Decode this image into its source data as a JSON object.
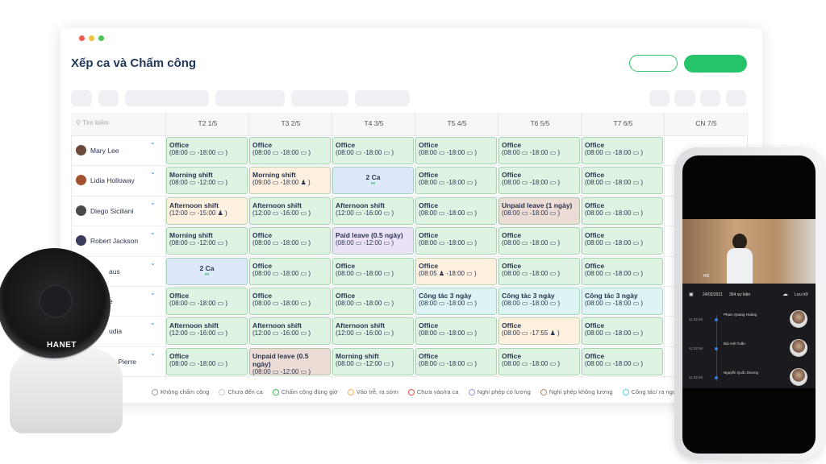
{
  "window": {
    "title": "Xếp ca và Chấm công"
  },
  "table": {
    "search": "Tìm kiếm",
    "days": [
      "T2 1/5",
      "T3 2/5",
      "T4 3/5",
      "T5 4/5",
      "T6 5/5",
      "T7 6/5",
      "CN 7/5"
    ],
    "rows": [
      {
        "name": "Mary Lee",
        "cells": [
          {
            "title": "Office",
            "time": "(08:00 ▭ -18:00 ▭ )",
            "color": "#dff3e3"
          },
          {
            "title": "Office",
            "time": "(08:00 ▭ -18:00 ▭ )",
            "color": "#dff3e3"
          },
          {
            "title": "Office",
            "time": "(08:00 ▭ -18:00 ▭ )",
            "color": "#dff3e3"
          },
          {
            "title": "Office",
            "time": "(08:00 ▭ -18:00 ▭ )",
            "color": "#dff3e3"
          },
          {
            "title": "Office",
            "time": "(08:00 ▭ -18:00 ▭ )",
            "color": "#dff3e3"
          },
          {
            "title": "Office",
            "time": "(08:00 ▭ -18:00 ▭ )",
            "color": "#dff3e3"
          }
        ]
      },
      {
        "name": "Lidia Holloway",
        "cells": [
          {
            "title": "Morning shift",
            "time": "(08:00 ▭ -12:00 ▭ )",
            "color": "#dff3e3"
          },
          {
            "title": "Morning shift",
            "time": "(09:00 ▭ -18:00 ♟ )",
            "color": "#fdf0de"
          },
          {
            "title": "2 Ca",
            "time": null,
            "color": "#dde9fb"
          },
          {
            "title": "Office",
            "time": "(08:00 ▭ -18:00 ▭ )",
            "color": "#dff3e3"
          },
          {
            "title": "Office",
            "time": "(08:00 ▭ -18:00 ▭ )",
            "color": "#dff3e3"
          },
          {
            "title": "Office",
            "time": "(08:00 ▭ -18:00 ▭ )",
            "color": "#dff3e3"
          }
        ]
      },
      {
        "name": "Diego Siciliani",
        "cells": [
          {
            "title": "Afternoon shift",
            "time": "(12:00 ▭ -15:00 ♟ )",
            "color": "#fdf0de"
          },
          {
            "title": "Afternoon shift",
            "time": "(12:00 ▭ -16:00 ▭ )",
            "color": "#dff3e3"
          },
          {
            "title": "Afternoon shift",
            "time": "(12:00 ▭ -16:00 ▭ )",
            "color": "#dff3e3"
          },
          {
            "title": "Office",
            "time": "(08:00 ▭ -18:00 ▭ )",
            "color": "#dff3e3"
          },
          {
            "title": "Unpaid leave (1 ngày)",
            "time": "(08:00 ▭ -18:00 ▭ )",
            "color": "#ecdcd6"
          },
          {
            "title": "Office",
            "time": "(08:00 ▭ -18:00 ▭ )",
            "color": "#dff3e3"
          }
        ]
      },
      {
        "name": "Robert Jackson",
        "cells": [
          {
            "title": "Morning shift",
            "time": "(08:00 ▭ -12:00 ▭ )",
            "color": "#dff3e3"
          },
          {
            "title": "Office",
            "time": "(08:00 ▭ -18:00 ▭ )",
            "color": "#dff3e3"
          },
          {
            "title": "Paid leave (0.5 ngày)",
            "time": "(08:00 ▭ -12:00 ▭ )",
            "color": "#ebe2f8"
          },
          {
            "title": "Office",
            "time": "(08:00 ▭ -18:00 ▭ )",
            "color": "#dff3e3"
          },
          {
            "title": "Office",
            "time": "(08:00 ▭ -18:00 ▭ )",
            "color": "#dff3e3"
          },
          {
            "title": "Office",
            "time": "(08:00 ▭ -18:00 ▭ )",
            "color": "#dff3e3"
          }
        ]
      },
      {
        "name": "aus",
        "cells": [
          {
            "title": "2 Ca",
            "time": null,
            "color": "#dde9fb"
          },
          {
            "title": "Office",
            "time": "(08:00 ▭ -18:00 ▭ )",
            "color": "#dff3e3"
          },
          {
            "title": "Office",
            "time": "(08:00 ▭ -18:00 ▭ )",
            "color": "#dff3e3"
          },
          {
            "title": "Office",
            "time": "(08:05 ♟ -18:00 ▭ )",
            "color": "#fdf0de"
          },
          {
            "title": "Office",
            "time": "(08:00 ▭ -18:00 ▭ )",
            "color": "#dff3e3"
          },
          {
            "title": "Office",
            "time": "(08:00 ▭ -18:00 ▭ )",
            "color": "#dff3e3"
          }
        ]
      },
      {
        "name": "e",
        "cells": [
          {
            "title": "Office",
            "time": "(08:00 ▭ -18:00 ▭ )",
            "color": "#dff3e3"
          },
          {
            "title": "Office",
            "time": "(08:00 ▭ -18:00 ▭ )",
            "color": "#dff3e3"
          },
          {
            "title": "Office",
            "time": "(08:00 ▭ -18:00 ▭ )",
            "color": "#dff3e3"
          },
          {
            "title": "Công tác 3 ngày",
            "time": "(08:00 ▭ -18:00 ▭ )",
            "color": "#dcf5f4"
          },
          {
            "title": "Công tác 3 ngày",
            "time": "(08:00 ▭ -18:00 ▭ )",
            "color": "#dcf5f4"
          },
          {
            "title": "Công tác 3 ngày",
            "time": "(08:00 ▭ -18:00 ▭ )",
            "color": "#dcf5f4"
          }
        ]
      },
      {
        "name": "udia",
        "cells": [
          {
            "title": "Afternoon shift",
            "time": "(12:00 ▭ -16:00 ▭ )",
            "color": "#dff3e3"
          },
          {
            "title": "Afternoon shift",
            "time": "(12:00 ▭ -16:00 ▭ )",
            "color": "#dff3e3"
          },
          {
            "title": "Afternoon shift",
            "time": "(12:00 ▭ -16:00 ▭ )",
            "color": "#dff3e3"
          },
          {
            "title": "Office",
            "time": "(08:00 ▭ -18:00 ▭ )",
            "color": "#dff3e3"
          },
          {
            "title": "Office",
            "time": "(08:00 ▭ -17:55 ♟ )",
            "color": "#fdf0de"
          },
          {
            "title": "Office",
            "time": "(08:00 ▭ -18:00 ▭ )",
            "color": "#dff3e3"
          }
        ]
      },
      {
        "name": "es Pierre",
        "cells": [
          {
            "title": "Office",
            "time": "(08:00 ▭ -18:00 ▭ )",
            "color": "#dff3e3"
          },
          {
            "title": "Unpaid leave (0.5 ngày)",
            "time": "(08:00 ▭ -12:00 ▭ )",
            "color": "#ecdcd6"
          },
          {
            "title": "Morning shift",
            "time": "(08:00 ▭ -12:00 ▭ )",
            "color": "#dff3e3"
          },
          {
            "title": "Office",
            "time": "(08:00 ▭ -18:00 ▭ )",
            "color": "#dff3e3"
          },
          {
            "title": "Office",
            "time": "(08:00 ▭ -18:00 ▭ )",
            "color": "#dff3e3"
          },
          {
            "title": "Office",
            "time": "(08:00 ▭ -18:00 ▭ )",
            "color": "#dff3e3"
          }
        ]
      }
    ]
  },
  "legend": [
    {
      "label": "Không chấm công",
      "color": "#9e9e9e"
    },
    {
      "label": "Chưa đến ca",
      "color": "#c8c8c8"
    },
    {
      "label": "Chấm công đúng giờ",
      "color": "#3cbf5a"
    },
    {
      "label": "Vào trễ, ra sớm",
      "color": "#f2b15a"
    },
    {
      "label": "Chưa vào/ra ca",
      "color": "#e84b4b"
    },
    {
      "label": "Nghỉ phép có lương",
      "color": "#a98ae0"
    },
    {
      "label": "Nghỉ phép không lương",
      "color": "#b48a7c"
    },
    {
      "label": "Công tác/ ra ngoài",
      "color": "#5fd3cf"
    }
  ],
  "camera": {
    "brand": "HANET"
  },
  "phone": {
    "quality": "HD",
    "date": "24/02/2021",
    "events": "364 sự kiện",
    "archive": "Lưu trữ",
    "log": [
      {
        "time": "11:32:56",
        "name": "Phạm Quang Hoàng"
      },
      {
        "time": "11:32:56",
        "name": "Bùi Anh Tuấn"
      },
      {
        "time": "11:32:56",
        "name": "Nguyễn Quốc Dương"
      }
    ]
  }
}
